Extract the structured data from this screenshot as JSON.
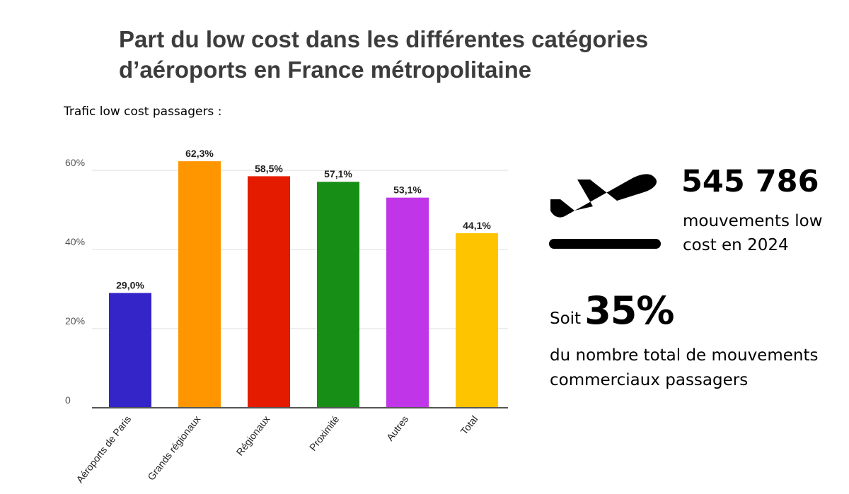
{
  "header": {
    "title_line1": "Part du low cost dans les différentes catégories",
    "title_line2": "d’aéroports en France métropolitaine",
    "subtitle": "Trafic low cost passagers :"
  },
  "chart_data": {
    "type": "bar",
    "title": "Part du low cost dans les différentes catégories d’aéroports en France métropolitaine",
    "subtitle": "Trafic low cost passagers :",
    "categories": [
      "Aéroports de Paris",
      "Grands régionaux",
      "Régionaux",
      "Proximité",
      "Autres",
      "Total"
    ],
    "values": [
      29.0,
      62.3,
      58.5,
      57.1,
      53.1,
      44.1
    ],
    "value_labels": [
      "29,0%",
      "62,3%",
      "58,5%",
      "57,1%",
      "53,1%",
      "44,1%"
    ],
    "colors": [
      "#3325c8",
      "#ff9600",
      "#e51b00",
      "#178f17",
      "#c035e8",
      "#ffc400"
    ],
    "yticks": [
      0,
      20,
      40,
      60
    ],
    "ytick_labels": [
      "0",
      "20%",
      "40%",
      "60%"
    ],
    "ylim": [
      0,
      60
    ],
    "xlabel": "",
    "ylabel": "",
    "grid": true
  },
  "stats": {
    "movements_number": "545 786",
    "movements_label": "mouvements low cost en 2024",
    "share_prefix": "Soit",
    "share_value": "35%",
    "share_label": "du nombre total de mouvements commerciaux passagers"
  }
}
